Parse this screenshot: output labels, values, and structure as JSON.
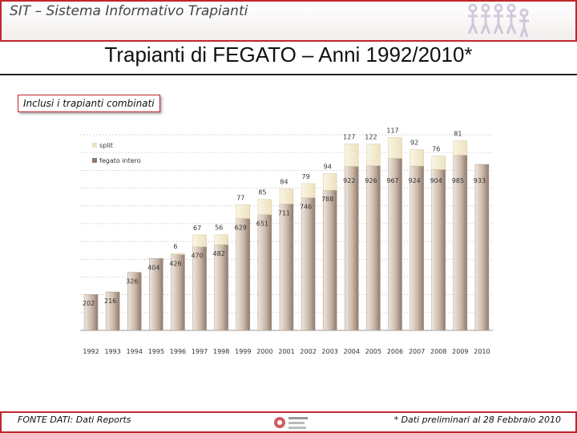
{
  "header": {
    "title": "SIT – Sistema Informativo Trapianti"
  },
  "main_title": "Trapianti di FEGATO – Anni 1992/2010*",
  "note": "Inclusi i trapianti combinati",
  "footer": {
    "source": "FONTE DATI: Dati Reports",
    "footnote": "* Dati preliminari al 28 Febbraio 2010"
  },
  "colors": {
    "accent": "#c0272d",
    "split": "#ece2bf",
    "intero_light": "#f1e6dc",
    "intero_dark": "#8f7a6c",
    "grid": "#c8c8c8"
  },
  "chart_data": {
    "type": "bar",
    "stacked": true,
    "categories": [
      "1992",
      "1993",
      "1994",
      "1995",
      "1996",
      "1997",
      "1998",
      "1999",
      "2000",
      "2001",
      "2002",
      "2003",
      "2004",
      "2005",
      "2006",
      "2007",
      "2008",
      "2009",
      "2010"
    ],
    "series": [
      {
        "name": "fegato intero",
        "values": [
          202,
          216,
          326,
          404,
          426,
          470,
          482,
          629,
          651,
          711,
          746,
          788,
          922,
          926,
          967,
          924,
          904,
          985,
          933
        ]
      },
      {
        "name": "split",
        "values": [
          0,
          0,
          0,
          0,
          6,
          67,
          56,
          77,
          85,
          84,
          79,
          94,
          127,
          122,
          117,
          92,
          76,
          81,
          null
        ]
      }
    ],
    "ylim": [
      0,
      1100
    ],
    "grid": true,
    "legend_position": "top-left"
  }
}
